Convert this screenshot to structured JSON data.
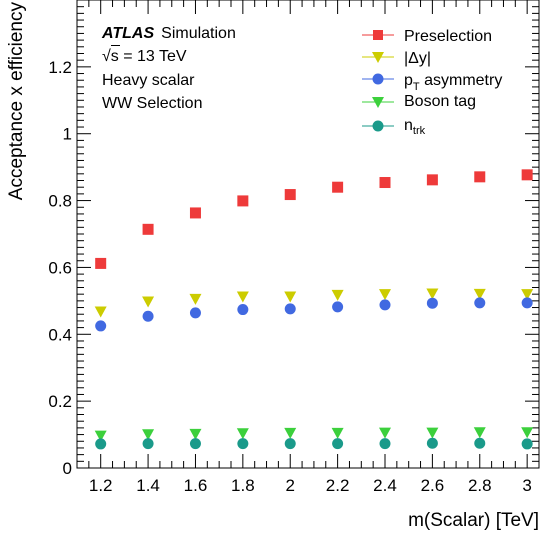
{
  "chart_data": {
    "type": "scatter",
    "xlabel": "m(Scalar) [TeV]",
    "ylabel": "Acceptance x efficiency",
    "xlim": [
      1.1,
      3.05
    ],
    "ylim": [
      0,
      1.4
    ],
    "x_ticks": [
      1.2,
      1.4,
      1.6,
      1.8,
      2,
      2.2,
      2.4,
      2.6,
      2.8,
      3
    ],
    "x_tick_labels": [
      "1.2",
      "1.4",
      "1.6",
      "1.8",
      "2",
      "2.2",
      "2.4",
      "2.6",
      "2.8",
      "3"
    ],
    "y_ticks": [
      0,
      0.2,
      0.4,
      0.6,
      0.8,
      1,
      1.2
    ],
    "y_tick_labels": [
      "0",
      "0.2",
      "0.4",
      "0.6",
      "0.8",
      "1",
      "1.2"
    ],
    "x": [
      1.2,
      1.4,
      1.6,
      1.8,
      2.0,
      2.2,
      2.4,
      2.6,
      2.8,
      3.0
    ],
    "series": [
      {
        "name": "Preselection",
        "marker": "square",
        "color": "#ee3a3a",
        "values": [
          0.612,
          0.714,
          0.763,
          0.799,
          0.818,
          0.84,
          0.854,
          0.862,
          0.871,
          0.877
        ]
      },
      {
        "name": "|Δy|",
        "marker": "triangle-down",
        "color": "#cccc00",
        "values": [
          0.468,
          0.498,
          0.506,
          0.513,
          0.513,
          0.518,
          0.52,
          0.522,
          0.521,
          0.52
        ]
      },
      {
        "name": "p_T asymmetry",
        "marker": "circle",
        "color": "#4169e1",
        "values": [
          0.425,
          0.454,
          0.464,
          0.474,
          0.476,
          0.482,
          0.488,
          0.493,
          0.494,
          0.494
        ]
      },
      {
        "name": "Boson tag",
        "marker": "triangle-down",
        "color": "#3cd03c",
        "values": [
          0.097,
          0.101,
          0.102,
          0.104,
          0.105,
          0.105,
          0.106,
          0.106,
          0.107,
          0.107
        ]
      },
      {
        "name": "n_trk",
        "marker": "circle",
        "color": "#1a9a8a",
        "values": [
          0.072,
          0.073,
          0.073,
          0.073,
          0.073,
          0.073,
          0.073,
          0.074,
          0.074,
          0.072
        ]
      }
    ],
    "legend": {
      "position": "top-right",
      "labels": {
        "preselection": "Preselection",
        "dy_pre": "|",
        "dy_delta": "Δy",
        "dy_post": "|",
        "pt_main": "p",
        "pt_sub": "T",
        "pt_rest": " asymmetry",
        "boson": "Boson tag",
        "ntrk_main": "n",
        "ntrk_sub": "trk"
      }
    },
    "annotation": {
      "atlas": "ATLAS",
      "simulation": "Simulation",
      "sqrt": "√",
      "energy_s": "s",
      "energy_rest": " = 13 TeV",
      "line3": "Heavy scalar",
      "line4": "WW Selection"
    },
    "grid": false
  }
}
